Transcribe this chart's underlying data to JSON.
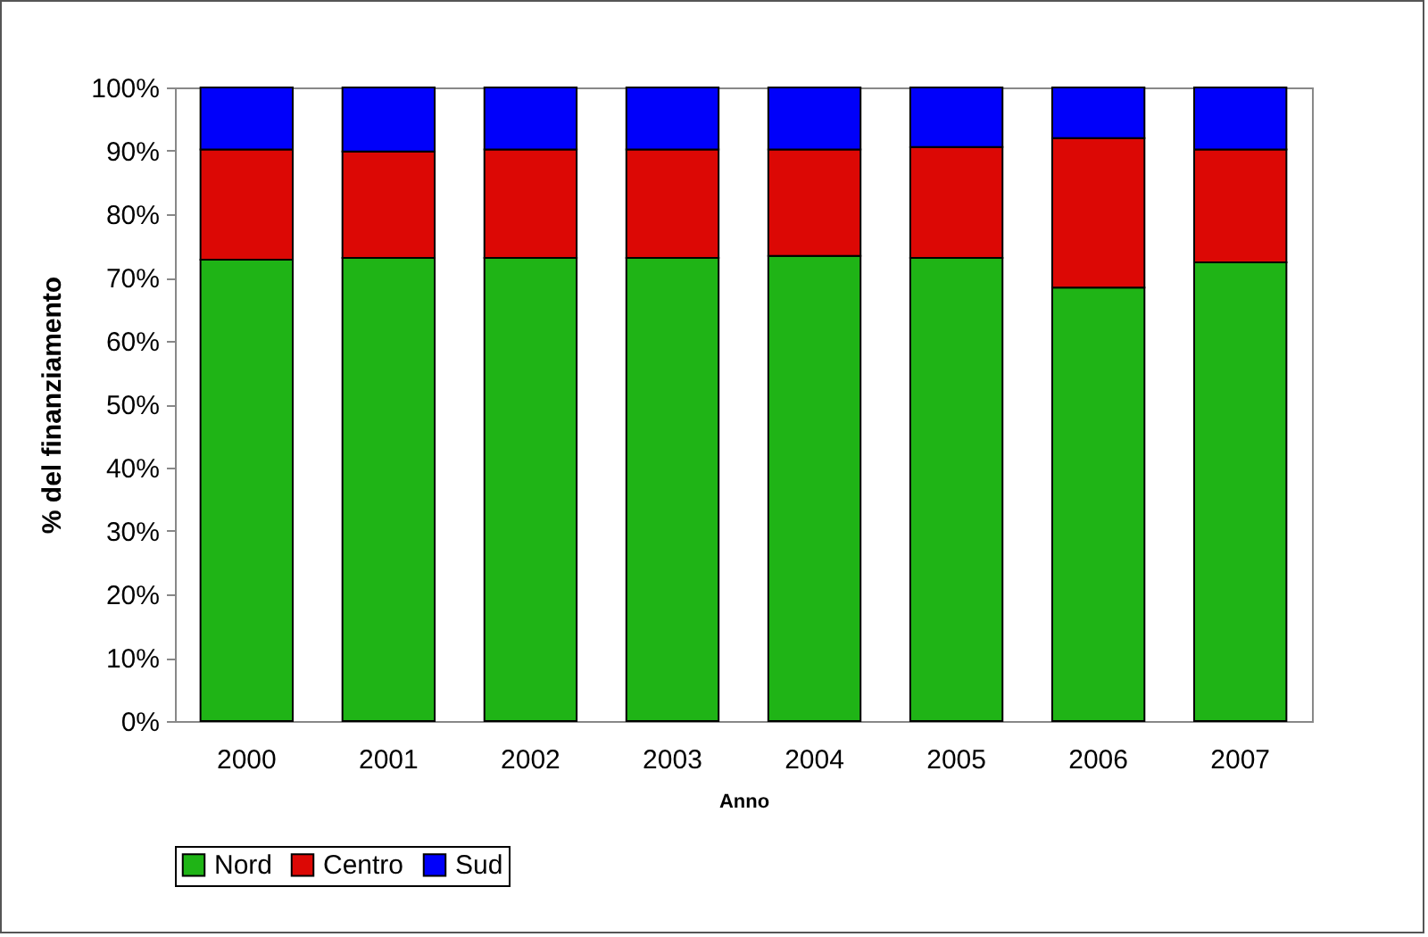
{
  "chart_data": {
    "type": "bar",
    "stacked": true,
    "xlabel": "Anno",
    "ylabel": "% del finanziamento",
    "categories": [
      "2000",
      "2001",
      "2002",
      "2003",
      "2004",
      "2005",
      "2006",
      "2007"
    ],
    "series": [
      {
        "name": "Nord",
        "color": "#1fb416",
        "values": [
          72.8,
          73.1,
          73.1,
          73.1,
          73.4,
          73.1,
          68.4,
          72.4
        ]
      },
      {
        "name": "Centro",
        "color": "#dc0805",
        "values": [
          17.4,
          16.8,
          17.1,
          17.1,
          16.8,
          17.5,
          23.6,
          17.8
        ]
      },
      {
        "name": "Sud",
        "color": "#0000fa",
        "values": [
          9.8,
          10.1,
          9.8,
          9.8,
          9.8,
          9.4,
          8.0,
          9.8
        ]
      }
    ],
    "ylim": [
      0,
      100
    ],
    "yticks": [
      {
        "value": 0,
        "label": "0%"
      },
      {
        "value": 10,
        "label": "10%"
      },
      {
        "value": 20,
        "label": "20%"
      },
      {
        "value": 30,
        "label": "30%"
      },
      {
        "value": 40,
        "label": "40%"
      },
      {
        "value": 50,
        "label": "50%"
      },
      {
        "value": 60,
        "label": "60%"
      },
      {
        "value": 70,
        "label": "70%"
      },
      {
        "value": 80,
        "label": "80%"
      },
      {
        "value": 90,
        "label": "90%"
      },
      {
        "value": 100,
        "label": "100%"
      }
    ],
    "grid": false,
    "legend": "bottom"
  }
}
